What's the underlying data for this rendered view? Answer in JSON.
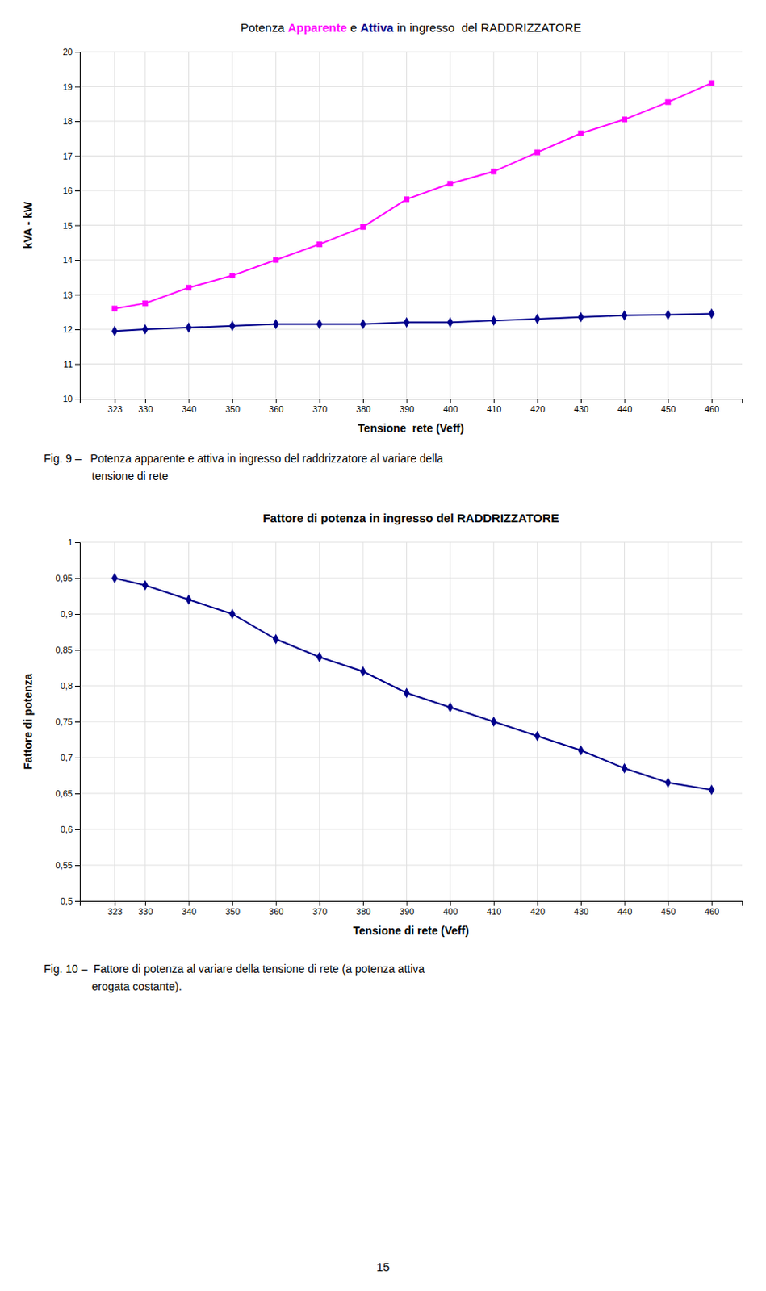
{
  "chart_data": [
    {
      "type": "line",
      "title": "Potenza Apparente e Attiva in ingresso  del RADDRIZZATORE",
      "xlabel": "Tensione  rete (Veff)",
      "ylabel": "kVA - kW",
      "x": [
        323,
        330,
        340,
        350,
        360,
        370,
        380,
        390,
        400,
        410,
        420,
        430,
        440,
        450,
        460
      ],
      "xlim": [
        315,
        467
      ],
      "xticks": [
        323,
        330,
        340,
        350,
        360,
        370,
        380,
        390,
        400,
        410,
        420,
        430,
        440,
        450,
        460
      ],
      "ylim": [
        10,
        20
      ],
      "yticks": [
        10,
        11,
        12,
        13,
        14,
        15,
        16,
        17,
        18,
        19,
        20
      ],
      "grid": true,
      "series": [
        {
          "name": "Apparente",
          "color": "#ff00ff",
          "marker": "square",
          "values": [
            12.6,
            12.75,
            13.2,
            13.55,
            14.0,
            14.45,
            14.95,
            15.75,
            16.2,
            16.55,
            17.1,
            17.65,
            18.05,
            18.55,
            19.1
          ]
        },
        {
          "name": "Attiva",
          "color": "#00008b",
          "marker": "diamond",
          "values": [
            11.95,
            12.0,
            12.05,
            12.1,
            12.15,
            12.15,
            12.15,
            12.2,
            12.2,
            12.25,
            12.3,
            12.35,
            12.4,
            12.42,
            12.45
          ]
        }
      ],
      "annotations": [
        "Fig. 9 –   Potenza apparente e attiva in ingresso del raddrizzatore al variare della",
        "tensione di rete"
      ]
    },
    {
      "type": "line",
      "title": "Fattore di potenza in ingresso del RADDRIZZATORE",
      "xlabel": "Tensione di rete (Veff)",
      "ylabel": "Fattore di potenza",
      "x": [
        323,
        330,
        340,
        350,
        360,
        370,
        380,
        390,
        400,
        410,
        420,
        430,
        440,
        450,
        460
      ],
      "xlim": [
        315,
        467
      ],
      "xticks": [
        323,
        330,
        340,
        350,
        360,
        370,
        380,
        390,
        400,
        410,
        420,
        430,
        440,
        450,
        460
      ],
      "ylim": [
        0.5,
        1.0
      ],
      "yticks": [
        {
          "value": 0.5,
          "label": "0,5"
        },
        {
          "value": 0.55,
          "label": "0,55"
        },
        {
          "value": 0.6,
          "label": "0,6"
        },
        {
          "value": 0.65,
          "label": "0,65"
        },
        {
          "value": 0.7,
          "label": "0,7"
        },
        {
          "value": 0.75,
          "label": "0,75"
        },
        {
          "value": 0.8,
          "label": "0,8"
        },
        {
          "value": 0.85,
          "label": "0,85"
        },
        {
          "value": 0.9,
          "label": "0,9"
        },
        {
          "value": 0.95,
          "label": "0,95"
        },
        1
      ],
      "grid": true,
      "series": [
        {
          "color": "#00008b",
          "marker": "diamond",
          "values": [
            0.95,
            0.94,
            0.92,
            0.9,
            0.865,
            0.84,
            0.82,
            0.79,
            0.77,
            0.75,
            0.73,
            0.71,
            0.685,
            0.665,
            0.655
          ]
        }
      ],
      "annotations": [
        "Fig. 10 –  Fattore di potenza al variare della tensione di rete (a potenza attiva",
        "erogata costante)."
      ]
    }
  ],
  "page_number": "15"
}
